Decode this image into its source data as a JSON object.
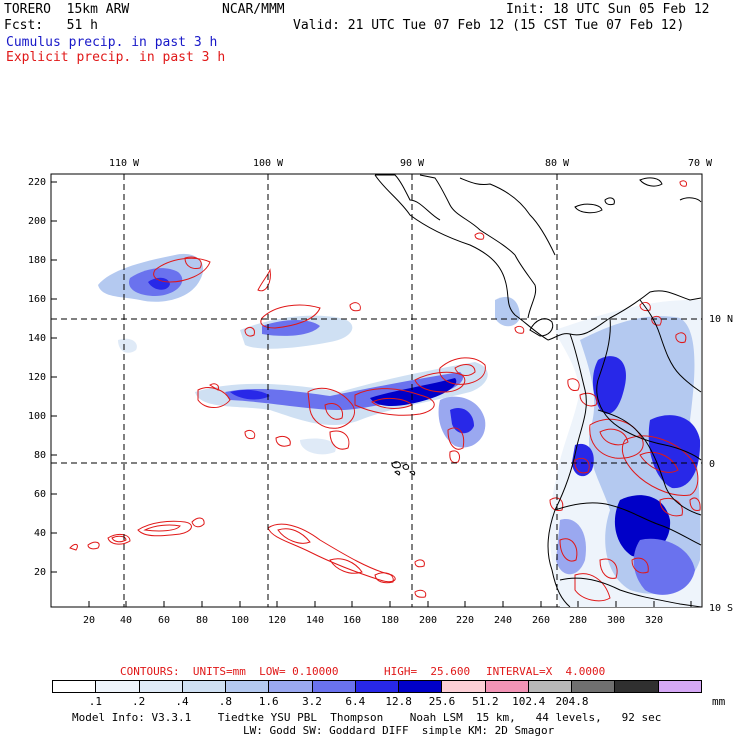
{
  "header": {
    "model": "TORERO  15km ARW",
    "org": "NCAR/MMM",
    "init": "Init: 18 UTC Sun 05 Feb 12",
    "fcst": "Fcst:   51 h",
    "valid": "Valid: 21 UTC Tue 07 Feb 12 (15 CST Tue 07 Feb 12)",
    "line_blue": "Cumulus precip. in past 3 h",
    "line_red": "Explicit precip. in past 3 h"
  },
  "map": {
    "lon_labels": [
      "110 W",
      "100 W",
      "90 W",
      "80 W",
      "70 W"
    ],
    "lat_labels": [
      "10 N",
      "0",
      "10 S"
    ],
    "x_ticks": [
      "20",
      "40",
      "60",
      "80",
      "100",
      "120",
      "140",
      "160",
      "180",
      "200",
      "220",
      "240",
      "260",
      "280",
      "300",
      "320"
    ],
    "y_ticks": [
      "20",
      "40",
      "60",
      "80",
      "100",
      "120",
      "140",
      "160",
      "180",
      "200",
      "220"
    ]
  },
  "contours_line": {
    "prefix": "CONTOURS:  UNITS=mm  LOW= 0.10000",
    "high": "HIGH=  25.600",
    "interval": "INTERVAL=X  4.0000"
  },
  "legend": {
    "colors": [
      "#ffffff",
      "#eef4fb",
      "#dfeaf7",
      "#cfe0f3",
      "#b4c9f0",
      "#9aa8f0",
      "#6a72ee",
      "#2828e8",
      "#0000c8",
      "#fccfd6",
      "#f294b6",
      "#b8b8b8",
      "#707070",
      "#303030",
      "#d5a8f5"
    ],
    "labels": [
      ".1",
      ".2",
      ".4",
      ".8",
      "1.6",
      "3.2",
      "6.4",
      "12.8",
      "25.6",
      "51.2",
      "102.4",
      "204.8"
    ],
    "units": "mm"
  },
  "footer": {
    "line1": "Model Info: V3.3.1    Tiedtke YSU PBL  Thompson    Noah LSM  15 km,   44 levels,   92 sec",
    "line2": "LW: Godd SW: Goddard DIFF  simple KM: 2D Smagor"
  }
}
